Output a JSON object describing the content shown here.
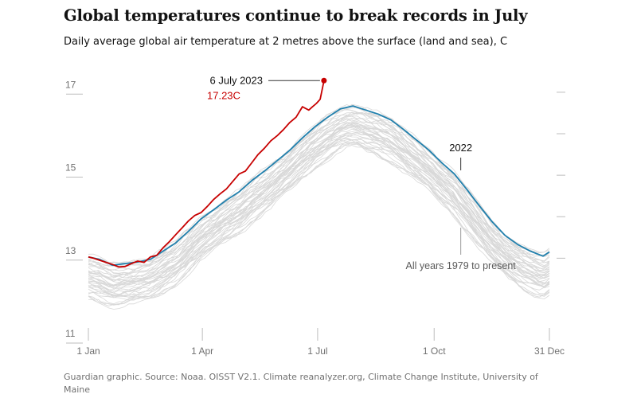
{
  "title": "Global temperatures continue to break records in July",
  "subtitle": "Daily average global air temperature at 2 metres above the surface (land and sea), C",
  "source": "Guardian graphic. Source: Noaa. OISST V2.1. Climate reanalyzer.org, Climate Change Institute, University of Maine",
  "colors": {
    "record": "#c70000",
    "year_2022": "#2180ad",
    "history": "#d8d8d8",
    "text": "#121212",
    "muted": "#707070"
  },
  "chart_data": {
    "type": "line",
    "title": "Global temperatures continue to break records in July",
    "xlabel": "",
    "ylabel": "",
    "x_unit": "day of year",
    "ylim": [
      11,
      17.6
    ],
    "xlim": [
      1,
      365
    ],
    "y_ticks": [
      {
        "value": 17,
        "label": "17"
      },
      {
        "value": 15,
        "label": "15"
      },
      {
        "value": 13,
        "label": "13"
      },
      {
        "value": 11,
        "label": "11"
      }
    ],
    "x_ticks": [
      {
        "value": 1,
        "label": "1 Jan"
      },
      {
        "value": 91,
        "label": "1 Apr"
      },
      {
        "value": 182,
        "label": "1 Jul"
      },
      {
        "value": 274,
        "label": "1 Oct"
      },
      {
        "value": 365,
        "label": "31 Dec"
      }
    ],
    "grid": false,
    "legend": "none",
    "annotations": [
      {
        "text": "6 July 2023",
        "x": 187,
        "y": 17.23
      },
      {
        "text": "17.23C",
        "x": 187,
        "y": 17.23
      },
      {
        "text": "2022",
        "x": 295,
        "y": 15.2
      },
      {
        "text": "All years 1979 to present",
        "x": 295,
        "y": 12.6
      }
    ],
    "series": [
      {
        "name": "2023",
        "x": [
          1,
          5,
          10,
          15,
          20,
          25,
          30,
          35,
          40,
          45,
          50,
          55,
          60,
          65,
          70,
          75,
          80,
          85,
          90,
          95,
          100,
          105,
          110,
          115,
          120,
          125,
          130,
          135,
          140,
          145,
          150,
          155,
          160,
          165,
          170,
          175,
          178,
          181,
          184,
          187
        ],
        "values": [
          12.98,
          12.95,
          12.9,
          12.85,
          12.8,
          12.74,
          12.75,
          12.82,
          12.88,
          12.85,
          12.98,
          13.02,
          13.2,
          13.35,
          13.52,
          13.68,
          13.85,
          13.98,
          14.05,
          14.2,
          14.37,
          14.5,
          14.62,
          14.8,
          14.98,
          15.05,
          15.25,
          15.45,
          15.6,
          15.78,
          15.9,
          16.05,
          16.22,
          16.35,
          16.6,
          16.52,
          16.6,
          16.68,
          16.78,
          17.23
        ]
      },
      {
        "name": "2022",
        "x": [
          1,
          10,
          20,
          30,
          40,
          50,
          60,
          70,
          80,
          90,
          100,
          110,
          120,
          130,
          140,
          150,
          160,
          170,
          180,
          190,
          200,
          210,
          220,
          230,
          240,
          250,
          260,
          270,
          280,
          290,
          300,
          310,
          320,
          330,
          340,
          350,
          360,
          365
        ],
        "values": [
          12.98,
          12.92,
          12.78,
          12.82,
          12.86,
          12.92,
          13.12,
          13.32,
          13.6,
          13.9,
          14.12,
          14.35,
          14.55,
          14.82,
          15.05,
          15.3,
          15.55,
          15.85,
          16.12,
          16.35,
          16.55,
          16.62,
          16.52,
          16.42,
          16.28,
          16.05,
          15.8,
          15.55,
          15.25,
          14.98,
          14.6,
          14.2,
          13.82,
          13.5,
          13.28,
          13.12,
          13.0,
          13.1
        ]
      }
    ]
  }
}
